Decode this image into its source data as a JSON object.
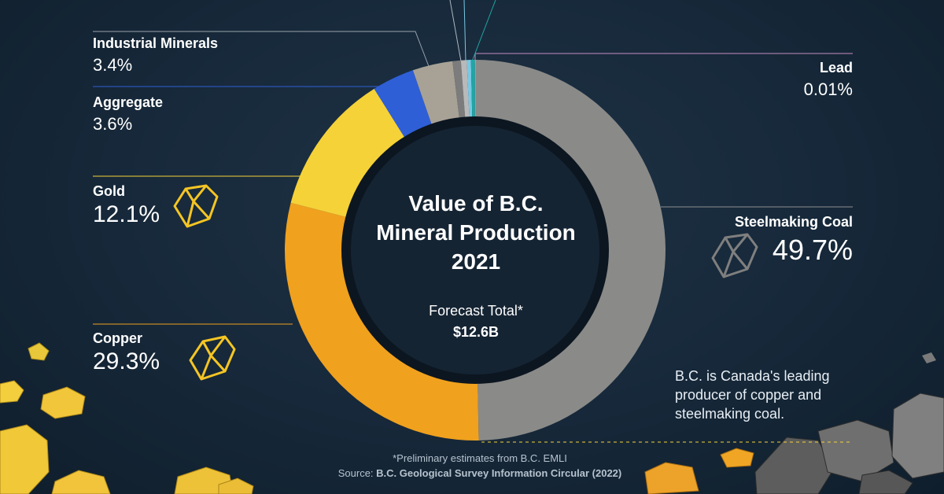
{
  "chart_data": {
    "type": "pie",
    "title": "Value of B.C. Mineral Production 2021",
    "title_lines": [
      "Value of B.C.",
      "Mineral Production",
      "2021"
    ],
    "total_label": "Forecast Total*",
    "total_value": "$12.6B",
    "slices": [
      {
        "name": "Steelmaking Coal",
        "value": 49.7,
        "label": "49.7%",
        "color": "#8a8a88"
      },
      {
        "name": "Copper",
        "value": 29.3,
        "label": "29.3%",
        "color": "#f0a11e"
      },
      {
        "name": "Gold",
        "value": 12.1,
        "label": "12.1%",
        "color": "#f5d238"
      },
      {
        "name": "Aggregate",
        "value": 3.6,
        "label": "3.6%",
        "color": "#2f5fd6"
      },
      {
        "name": "Industrial Minerals",
        "value": 3.4,
        "label": "3.4%",
        "color": "#a8a296"
      },
      {
        "name": "",
        "value": 0.7,
        "label": "",
        "color": "#7c7c7c"
      },
      {
        "name": "",
        "value": 0.5,
        "label": "",
        "color": "#b9b9b9"
      },
      {
        "name": "",
        "value": 0.35,
        "label": "",
        "color": "#79c9e3"
      },
      {
        "name": "",
        "value": 0.34,
        "label": "",
        "color": "#1fa6a3"
      },
      {
        "name": "Lead",
        "value": 0.01,
        "label": "0.01%",
        "color": "#c78dc3"
      }
    ],
    "legend": "none"
  },
  "note": "B.C. is Canada's leading producer of copper and steelmaking coal.",
  "footnote": {
    "line1": "*Preliminary estimates from B.C. EMLI",
    "source_prefix": "Source: ",
    "source_name": "B.C. Geological Survey Information Circular (2022)"
  },
  "icons": {
    "gold": "gold-nugget-icon",
    "copper": "copper-nugget-icon",
    "coal": "coal-rock-icon"
  },
  "colors": {
    "background": "#162839",
    "hole": "#152433",
    "hole_ring": "#0c1620"
  }
}
